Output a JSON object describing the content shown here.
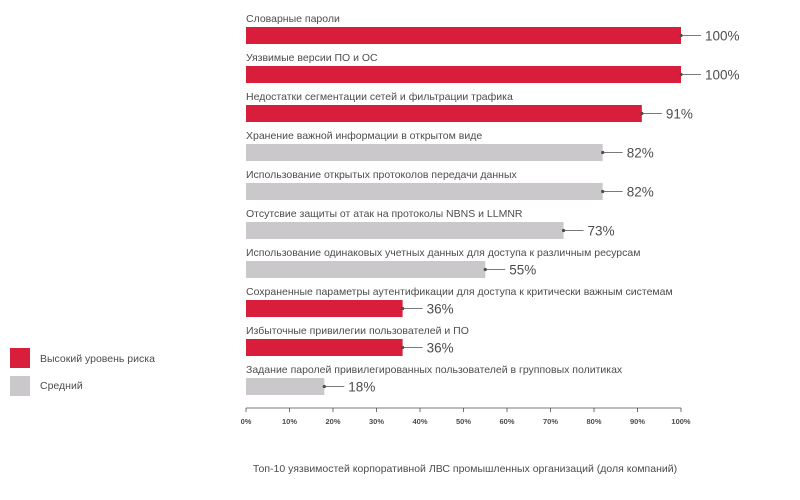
{
  "chart_data": {
    "type": "bar",
    "orientation": "horizontal",
    "categories": [
      "Словарные пароли",
      "Уязвимые версии ПО и ОС",
      "Недостатки сегментации сетей и фильтрации трафика",
      "Хранение важной информации в открытом виде",
      "Использование открытых протоколов передачи данных",
      "Отсутсвие защиты от атак на протоколы NBNS и LLMNR",
      "Использование одинаковых учетных данных для доступа к различным ресурсам",
      "Сохраненные параметры аутентификации для доступа к критически важным системам",
      "Избыточные привилегии пользователей и ПО",
      "Задание паролей привилегированных пользователей в групповых политиках"
    ],
    "values": [
      100,
      100,
      91,
      82,
      82,
      73,
      55,
      36,
      36,
      18
    ],
    "value_labels": [
      "100%",
      "100%",
      "91%",
      "82%",
      "82%",
      "73%",
      "55%",
      "36%",
      "36%",
      "18%"
    ],
    "risk": [
      "high",
      "high",
      "high",
      "medium",
      "medium",
      "medium",
      "medium",
      "high",
      "high",
      "medium"
    ],
    "xlim": [
      0,
      100
    ],
    "xticks": [
      0,
      10,
      20,
      30,
      40,
      50,
      60,
      70,
      80,
      90,
      100
    ],
    "xtick_labels": [
      "0%",
      "10%",
      "20%",
      "30%",
      "40%",
      "50%",
      "60%",
      "70%",
      "80%",
      "90%",
      "100%"
    ],
    "grid": false,
    "legend_position": "left",
    "legend": [
      {
        "key": "high",
        "label": "Высокий уровень риска",
        "color": "#d81e3a"
      },
      {
        "key": "medium",
        "label": "Средний",
        "color": "#cac8cb"
      }
    ],
    "caption": "Топ-10 уязвимостей корпоративной ЛВС промышленных организаций (доля компаний)"
  },
  "colors": {
    "high": "#d81e3a",
    "medium": "#cac8cb",
    "axis": "#4d4d4d",
    "text": "#4d4d4d"
  }
}
